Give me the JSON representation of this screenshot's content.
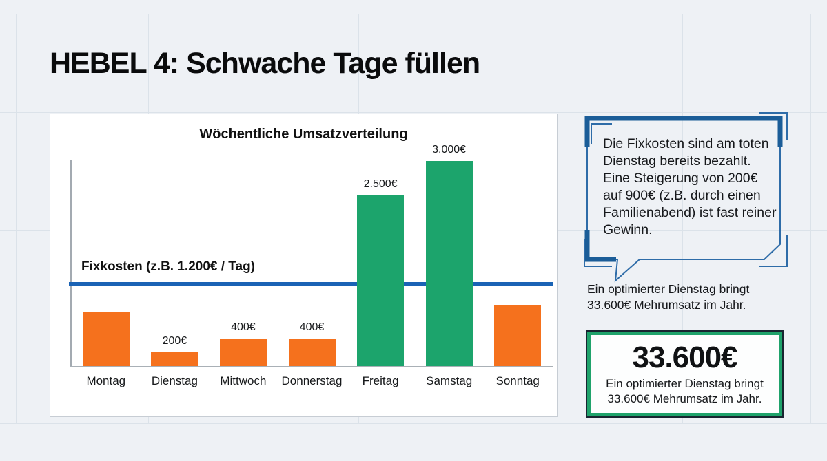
{
  "slide": {
    "title": "HEBEL 4: Schwache Tage füllen"
  },
  "chart_data": {
    "type": "bar",
    "title": "Wöchentliche Umsatzverteilung",
    "categories": [
      "Montag",
      "Dienstag",
      "Mittwoch",
      "Donnerstag",
      "Freitag",
      "Samstag",
      "Sonntag"
    ],
    "values": [
      800,
      200,
      400,
      400,
      2500,
      3000,
      900
    ],
    "value_labels": [
      "",
      "200€",
      "400€",
      "400€",
      "2.500€",
      "3.000€",
      ""
    ],
    "bar_colors": [
      "#f5711d",
      "#f5711d",
      "#f5711d",
      "#f5711d",
      "#1ca46c",
      "#1ca46c",
      "#f5711d"
    ],
    "ylim": [
      0,
      3000
    ],
    "grid": false,
    "reference_line": {
      "label": "Fixkosten (z.B. 1.200€ / Tag)",
      "value": 1200,
      "color": "#1a63b5"
    }
  },
  "callout": {
    "text": "Die Fixkosten sind am toten Dienstag bereits bezahlt. Eine Steigerung von 200€ auf 900€ (z.B. durch einen Familienabend) ist fast reiner Gewinn.",
    "caption": "Ein optimierter Dienstag bringt 33.600€ Mehrumsatz im Jahr."
  },
  "highlight_box": {
    "amount": "33.600€",
    "caption": "Ein optimierter Dienstag bringt 33.600€ Mehrumsatz im Jahr."
  },
  "colors": {
    "background": "#eef1f5",
    "weak_day_bar": "#f5711d",
    "strong_day_bar": "#1ca46c",
    "fixkosten_line": "#1a63b5",
    "bubble_frame": "#1b5d98",
    "highlight_border": "#1fa36b"
  }
}
